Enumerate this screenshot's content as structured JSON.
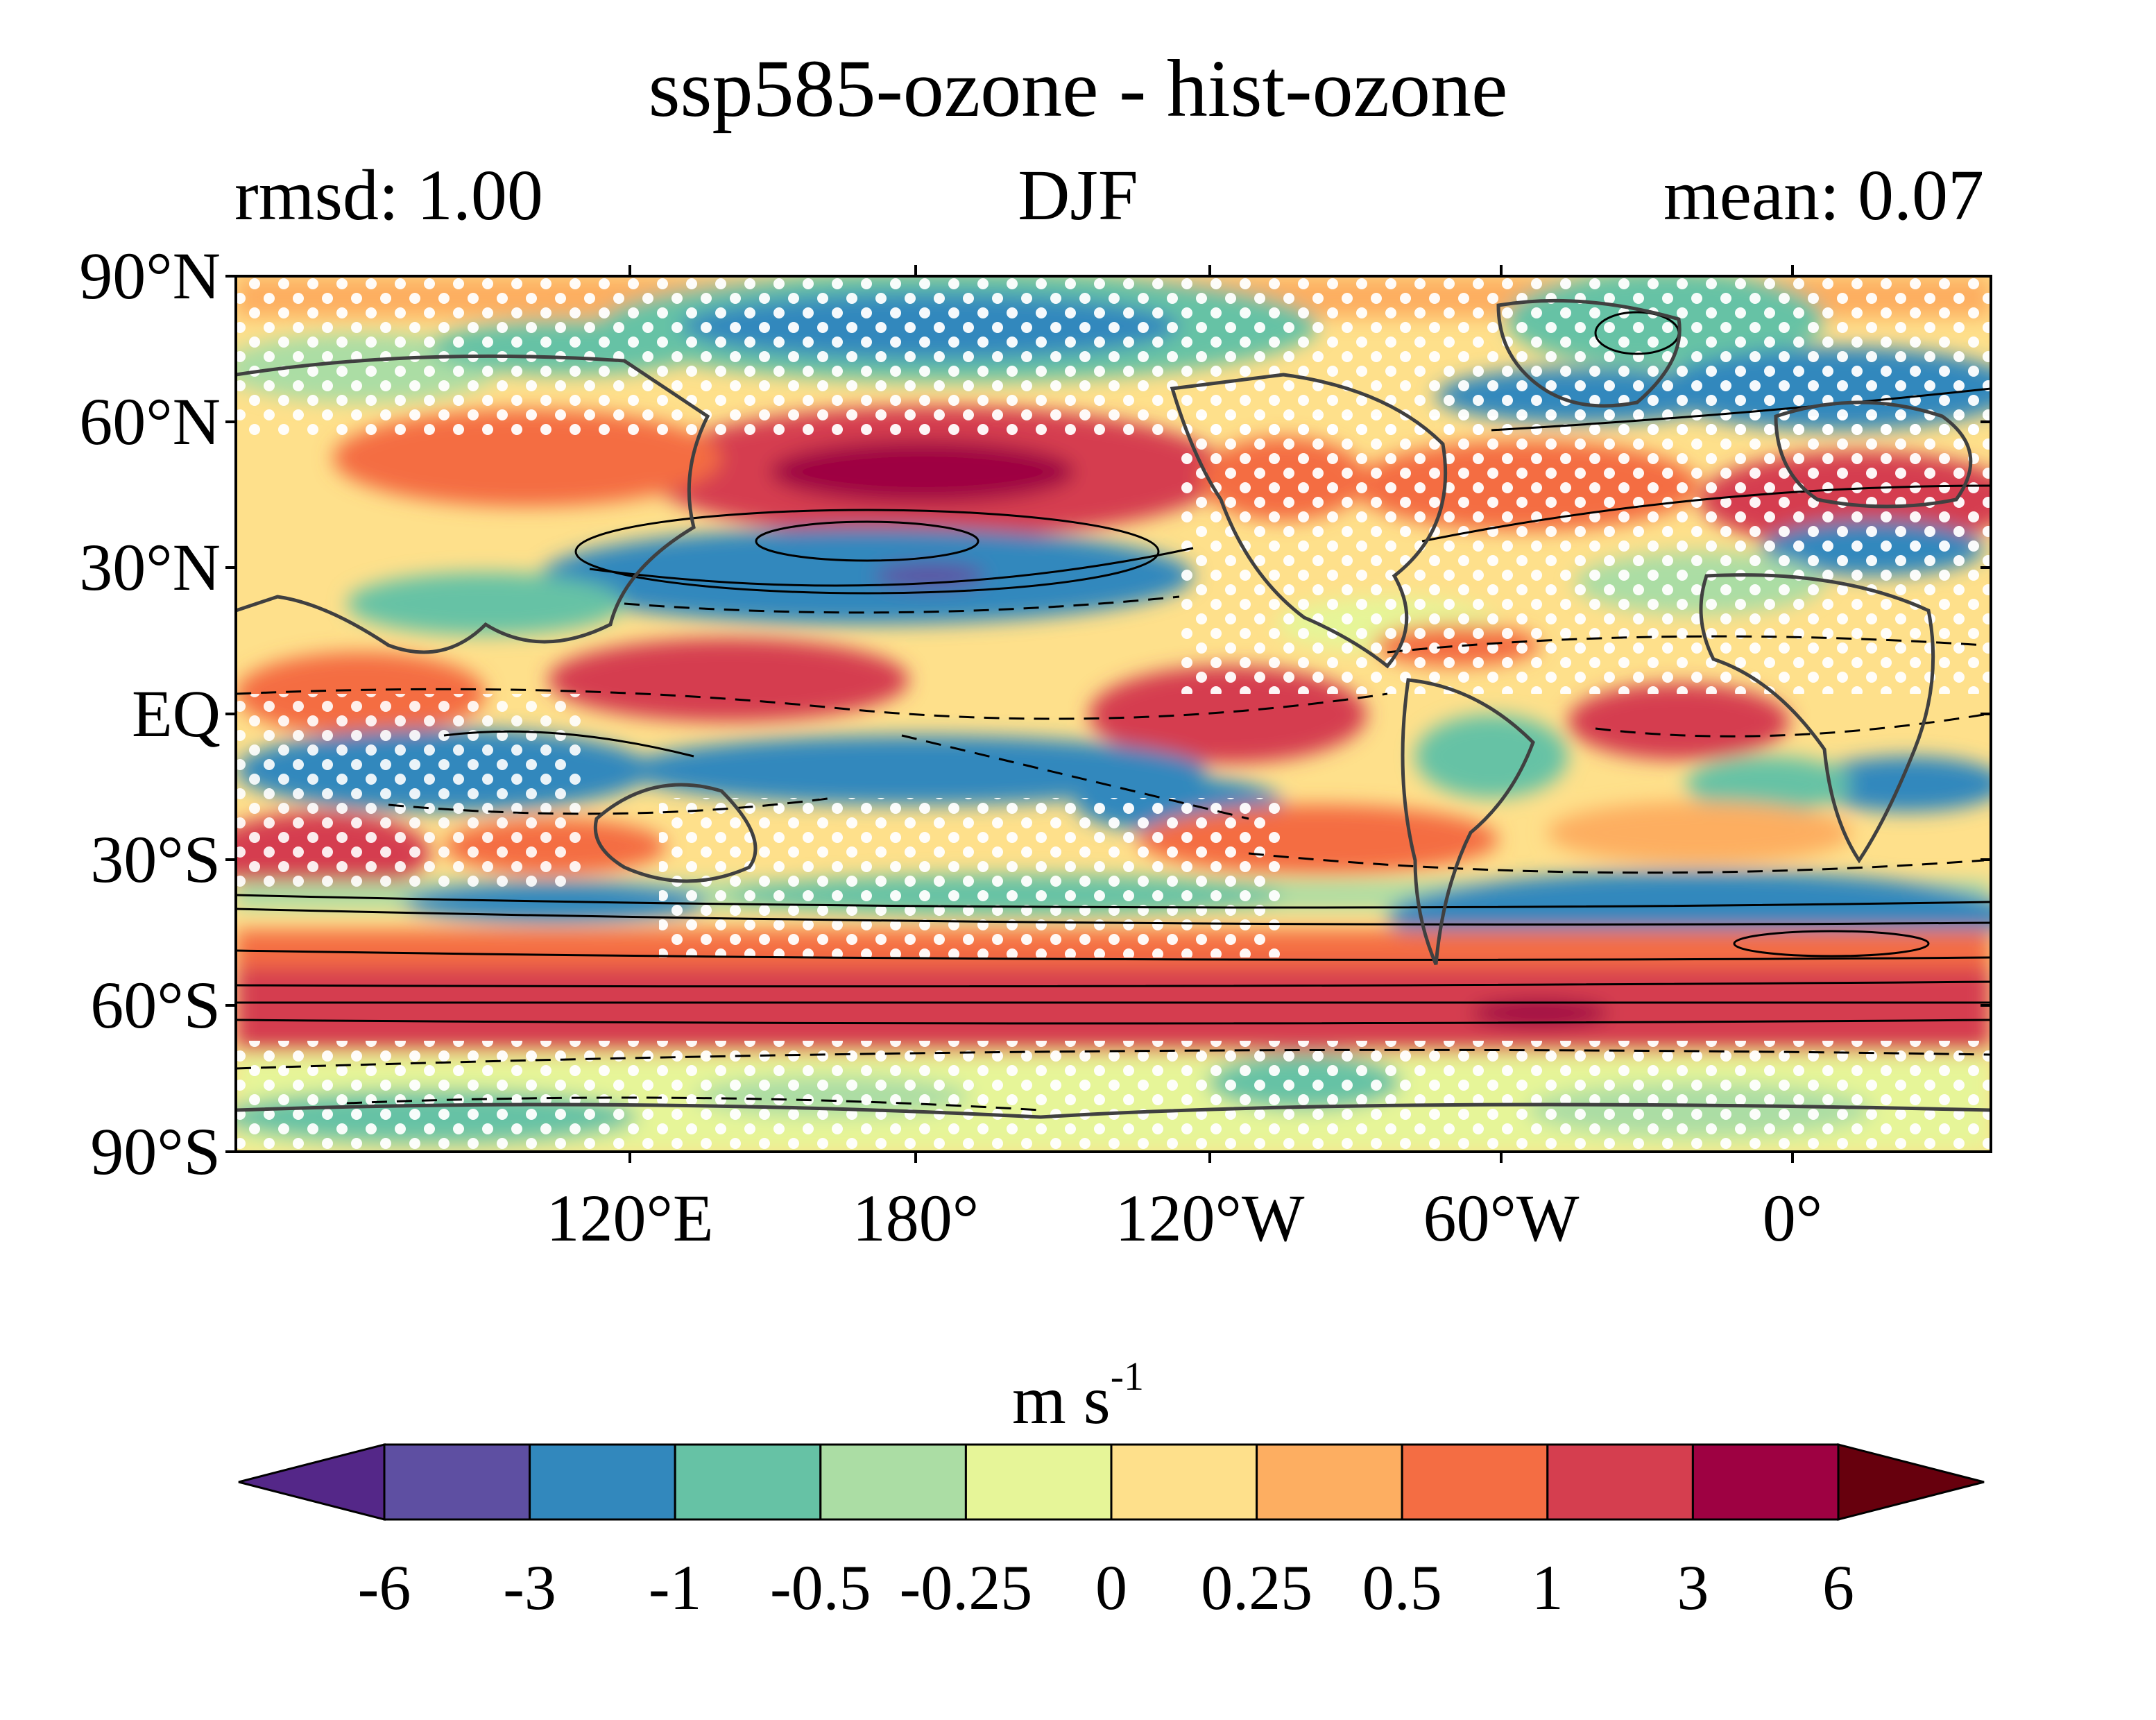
{
  "title": "ssp585-ozone - hist-ozone",
  "subtitle_left": "rmsd: 1.00",
  "subtitle_center": "DJF",
  "subtitle_right": "mean: 0.07",
  "lat_ticks": [
    "90°N",
    "60°N",
    "30°N",
    "EQ",
    "30°S",
    "60°S",
    "90°S"
  ],
  "lon_ticks": [
    "120°E",
    "180°",
    "120°W",
    "60°W",
    "0°"
  ],
  "colorbar": {
    "label": "m s",
    "label_sup": "-1",
    "tick_labels": [
      "-6",
      "-3",
      "-1",
      "-0.5",
      "-0.25",
      "0",
      "0.25",
      "0.5",
      "1",
      "3",
      "6"
    ],
    "levels": [
      -6,
      -3,
      -1,
      -0.5,
      -0.25,
      0,
      0.25,
      0.5,
      1,
      3,
      6
    ],
    "colors": [
      "#5e4fa2",
      "#3288bd",
      "#66c2a5",
      "#abdda4",
      "#e6f598",
      "#fee08b",
      "#fdae61",
      "#f46d43",
      "#d53e4f",
      "#9e0142"
    ],
    "extend_low_color": "#542788",
    "extend_high_color": "#67000d"
  },
  "map_data": {
    "type": "filled contour map",
    "variable": "zonal wind change",
    "projection": "cylindrical equidistant",
    "stippling": "white dots",
    "overlay": "black contours (solid positive, dashed negative)"
  }
}
